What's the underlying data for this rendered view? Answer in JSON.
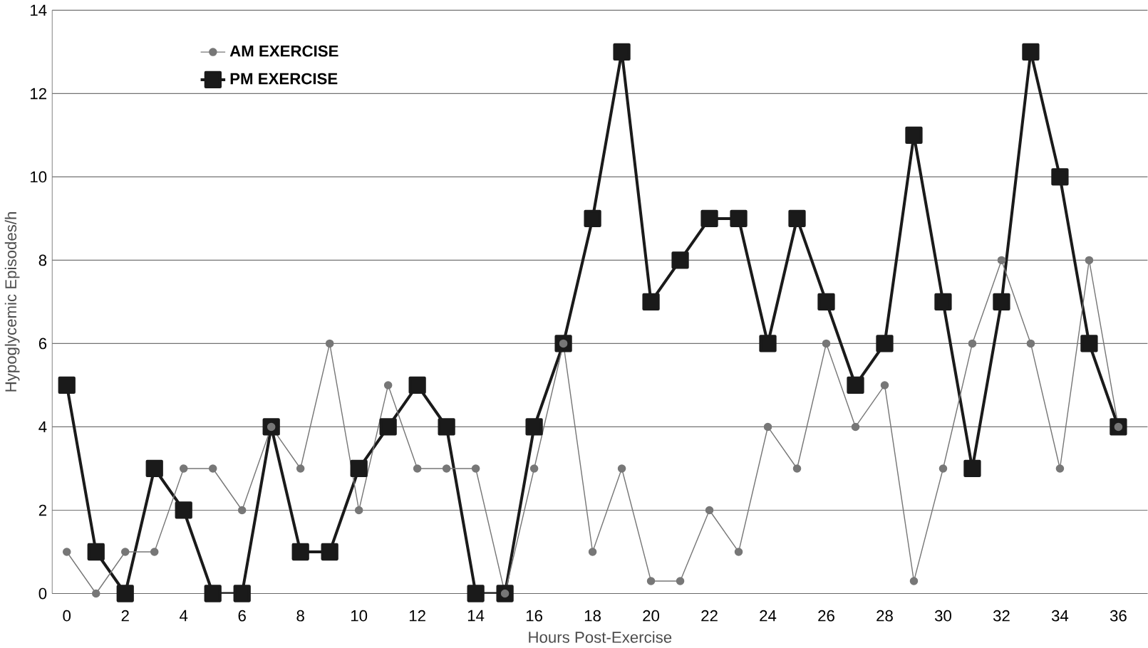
{
  "chart_data": {
    "type": "line",
    "xlabel": "Hours Post-Exercise",
    "ylabel": "Hypoglycemic Episodes/h",
    "x": [
      0,
      1,
      2,
      3,
      4,
      5,
      6,
      7,
      8,
      9,
      10,
      11,
      12,
      13,
      14,
      15,
      16,
      17,
      18,
      19,
      20,
      21,
      22,
      23,
      24,
      25,
      26,
      27,
      28,
      29,
      30,
      31,
      32,
      33,
      34,
      35,
      36
    ],
    "series": [
      {
        "name": "AM EXERCISE",
        "color": "#777777",
        "marker": "circle",
        "values": [
          1,
          0,
          1,
          1,
          3,
          3,
          2,
          4,
          3,
          6,
          2,
          5,
          3,
          3,
          3,
          0,
          3,
          6,
          1,
          3,
          0.3,
          0.3,
          2,
          1,
          4,
          3,
          6,
          4,
          5,
          0.3,
          3,
          6,
          8,
          6,
          3,
          8,
          4
        ]
      },
      {
        "name": "PM EXERCISE",
        "color": "#1a1a1a",
        "marker": "square",
        "values": [
          5,
          1,
          0,
          3,
          2,
          0,
          0,
          4,
          1,
          1,
          3,
          4,
          5,
          4,
          0,
          0,
          4,
          6,
          9,
          13,
          7,
          8,
          9,
          9,
          6,
          9,
          7,
          5,
          6,
          11,
          7,
          3,
          7,
          13,
          10,
          6,
          4
        ]
      }
    ],
    "xlim": [
      -0.5,
      37
    ],
    "ylim": [
      0,
      14
    ],
    "xticks": [
      0,
      2,
      4,
      6,
      8,
      10,
      12,
      14,
      16,
      18,
      20,
      22,
      24,
      26,
      28,
      30,
      32,
      34,
      36
    ],
    "yticks": [
      0,
      2,
      4,
      6,
      8,
      10,
      12,
      14
    ],
    "grid": "y",
    "legend": "top left",
    "line_style": "solid"
  }
}
